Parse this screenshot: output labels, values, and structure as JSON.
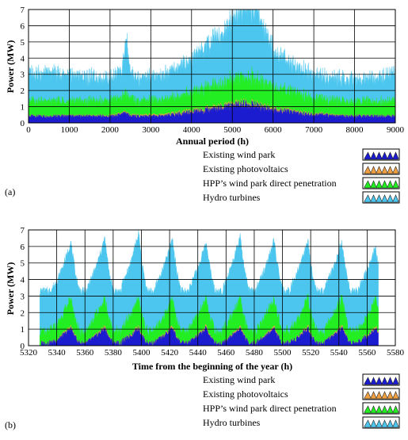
{
  "colors": {
    "wind": "#1b1bd0",
    "pv": "#f0a040",
    "hpp": "#22ee22",
    "hydro": "#4cc6ee"
  },
  "chart_data": [
    {
      "type": "area",
      "panel_label": "(a)",
      "xlabel": "Annual period (h)",
      "ylabel": "Power (MW)",
      "xlim": [
        0,
        9000
      ],
      "ylim": [
        0,
        7
      ],
      "xticks": [
        0,
        1000,
        2000,
        3000,
        4000,
        5000,
        6000,
        7000,
        8000,
        9000
      ],
      "yticks": [
        0,
        1,
        2,
        3,
        4,
        5,
        6,
        7
      ],
      "grid": true,
      "legend_position": "below",
      "x": [
        0,
        300,
        600,
        900,
        1200,
        1500,
        1800,
        2100,
        2300,
        2400,
        2500,
        2700,
        3000,
        3300,
        3600,
        3900,
        4200,
        4500,
        4800,
        5000,
        5200,
        5400,
        5600,
        5800,
        6000,
        6300,
        6600,
        6900,
        7200,
        7500,
        7800,
        8100,
        8400,
        8700,
        8900
      ],
      "series": [
        {
          "name": "Existing wind park",
          "color_key": "wind",
          "values": [
            0.4,
            0.4,
            0.4,
            0.4,
            0.4,
            0.4,
            0.4,
            0.4,
            0.5,
            0.6,
            0.4,
            0.4,
            0.4,
            0.4,
            0.5,
            0.6,
            0.7,
            0.8,
            0.9,
            1.0,
            1.1,
            1.1,
            1.0,
            0.9,
            0.8,
            0.7,
            0.6,
            0.5,
            0.5,
            0.4,
            0.4,
            0.4,
            0.4,
            0.4,
            0.4
          ]
        },
        {
          "name": "Existing photovoltaics",
          "color_key": "pv",
          "values": [
            0.02,
            0.02,
            0.02,
            0.02,
            0.03,
            0.03,
            0.04,
            0.05,
            0.05,
            0.05,
            0.05,
            0.06,
            0.07,
            0.08,
            0.08,
            0.09,
            0.09,
            0.1,
            0.1,
            0.1,
            0.1,
            0.1,
            0.1,
            0.09,
            0.09,
            0.08,
            0.07,
            0.06,
            0.05,
            0.04,
            0.03,
            0.03,
            0.02,
            0.02,
            0.02
          ]
        },
        {
          "name": "HPP’s wind park direct penetration",
          "color_key": "hpp",
          "values": [
            0.9,
            0.9,
            0.9,
            0.9,
            0.9,
            0.9,
            0.9,
            0.9,
            1.0,
            1.1,
            1.0,
            0.9,
            0.9,
            0.9,
            1.0,
            1.1,
            1.2,
            1.3,
            1.4,
            1.5,
            1.5,
            1.6,
            1.5,
            1.4,
            1.3,
            1.2,
            1.1,
            1.0,
            0.9,
            0.9,
            0.9,
            0.9,
            0.9,
            0.9,
            0.9
          ]
        },
        {
          "name": "Hydro turbines",
          "color_key": "hydro",
          "values": [
            1.6,
            1.5,
            1.6,
            1.4,
            1.4,
            1.3,
            1.3,
            1.2,
            1.5,
            3.2,
            1.4,
            1.2,
            1.3,
            1.4,
            1.6,
            1.8,
            2.2,
            2.6,
            3.0,
            3.6,
            4.0,
            4.2,
            4.0,
            3.0,
            2.2,
            1.7,
            1.4,
            1.3,
            1.2,
            1.2,
            1.2,
            1.2,
            1.3,
            1.4,
            1.5
          ]
        }
      ],
      "legend": [
        "Existing wind park",
        "Existing photovoltaics",
        "HPP’s wind park direct penetration",
        "Hydro turbines"
      ]
    },
    {
      "type": "area",
      "panel_label": "(b)",
      "xlabel": "Time from the beginning of the year (h)",
      "ylabel": "Power (MW)",
      "xlim": [
        5320,
        5580
      ],
      "ylim": [
        0,
        7
      ],
      "xticks": [
        5320,
        5340,
        5360,
        5380,
        5400,
        5420,
        5440,
        5460,
        5480,
        5500,
        5520,
        5540,
        5560,
        5580
      ],
      "yticks": [
        0,
        1,
        2,
        3,
        4,
        5,
        6,
        7
      ],
      "grid": true,
      "legend_position": "below",
      "x_start": 5328,
      "x_end": 5568,
      "daily_peaks_x": [
        5350,
        5374,
        5398,
        5422,
        5446,
        5470,
        5494,
        5518,
        5542,
        5566
      ],
      "daily_peak_total": [
        6.3,
        6.5,
        6.8,
        6.5,
        6.3,
        6.6,
        6.4,
        6.4,
        6.3,
        6.0
      ],
      "daily_min_total": 3.3,
      "series": [
        {
          "name": "Existing wind park",
          "color_key": "wind",
          "typical_peak": 1.1
        },
        {
          "name": "Existing photovoltaics",
          "color_key": "pv",
          "typical_peak": 0.15
        },
        {
          "name": "HPP’s wind park direct penetration",
          "color_key": "hpp",
          "typical_peak": 2.2
        },
        {
          "name": "Hydro turbines",
          "color_key": "hydro",
          "typical_peak": 6.5
        }
      ],
      "legend": [
        "Existing wind park",
        "Existing photovoltaics",
        "HPP’s wind park direct penetration",
        "Hydro turbines"
      ]
    }
  ]
}
